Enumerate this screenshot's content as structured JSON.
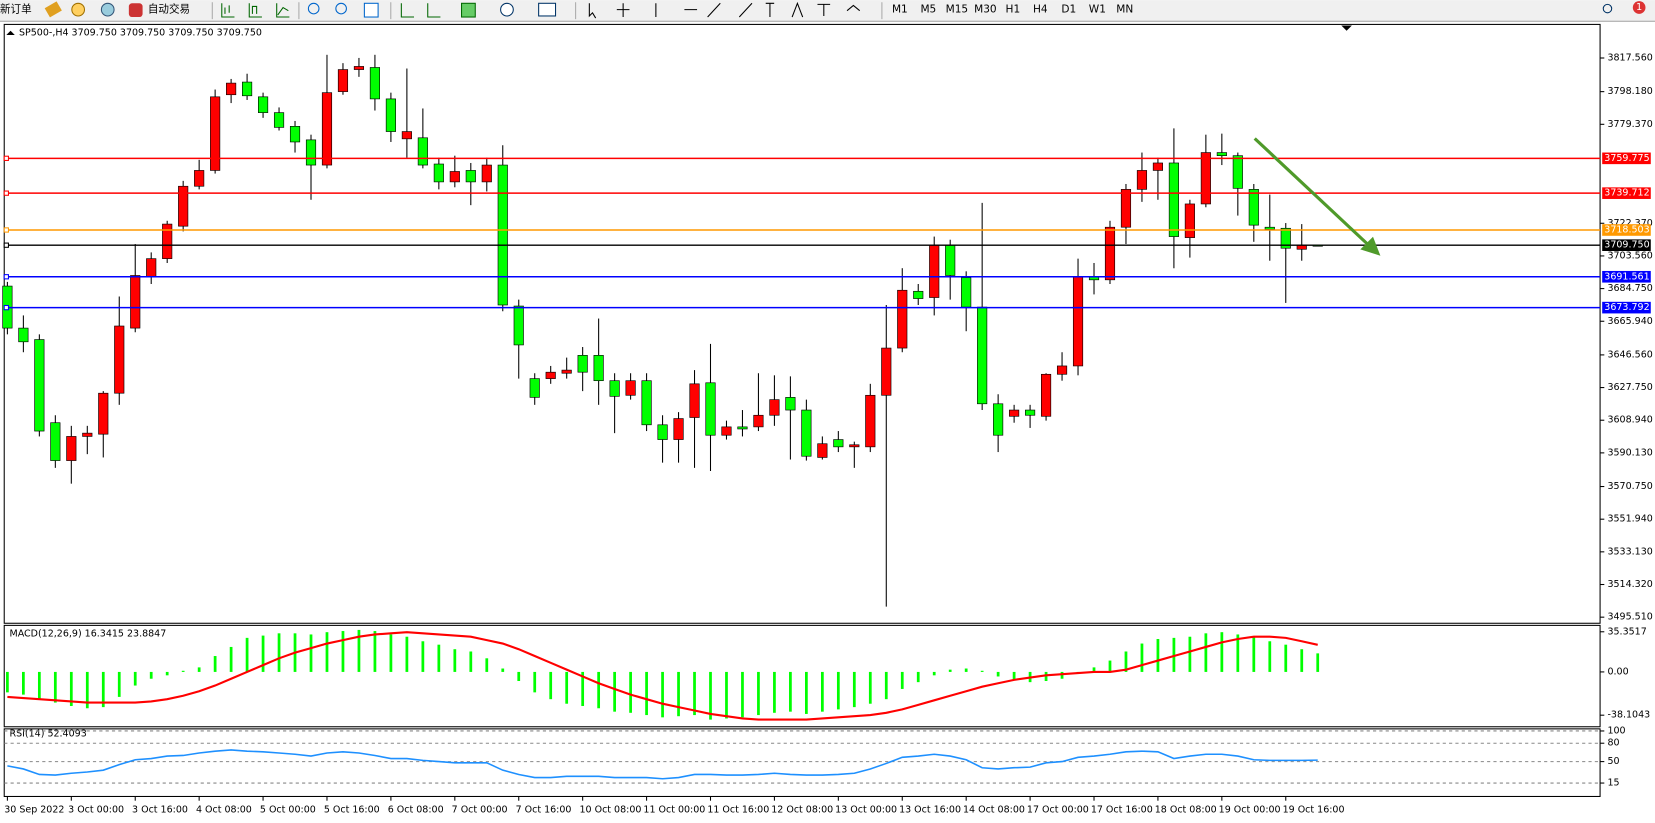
{
  "toolbar": {
    "new_order": "新订单",
    "auto_trading": "自动交易",
    "timeframes": [
      "M1",
      "M5",
      "M15",
      "M30",
      "H1",
      "H4",
      "D1",
      "W1",
      "MN"
    ],
    "notifications": 1
  },
  "chart_data": [
    {
      "type": "candlestick",
      "title": "SP500-,H4 3709.750 3709.750 3709.750 3709.750",
      "categories": [
        "30 Sep 2022",
        null,
        null,
        null,
        "3 Oct 00:00",
        null,
        null,
        null,
        "3 Oct 16:00",
        null,
        null,
        null,
        "4 Oct 08:00",
        null,
        null,
        null,
        "5 Oct 00:00",
        null,
        null,
        null,
        "5 Oct 16:00",
        null,
        null,
        null,
        "6 Oct 08:00",
        null,
        null,
        null,
        "7 Oct 00:00",
        null,
        null,
        null,
        "7 Oct 16:00",
        null,
        null,
        null,
        "10 Oct 08:00",
        null,
        null,
        null,
        "11 Oct 00:00",
        null,
        null,
        null,
        "11 Oct 16:00",
        null,
        null,
        null,
        "12 Oct 08:00",
        null,
        null,
        null,
        "13 Oct 00:00",
        null,
        null,
        null,
        "13 Oct 16:00",
        null,
        null,
        null,
        "14 Oct 08:00",
        null,
        null,
        null,
        "17 Oct 00:00",
        null,
        null,
        null,
        "17 Oct 16:00",
        null,
        null,
        null,
        "18 Oct 08:00",
        null,
        null,
        null,
        "19 Oct 00:00",
        null,
        null,
        null,
        "19 Oct 16:00",
        null,
        null
      ],
      "open": [
        3686.2,
        3662.0,
        3655.4,
        3607.5,
        3585.7,
        3599.6,
        3600.9,
        3624.5,
        3662.0,
        3691.7,
        3702.0,
        3720.7,
        3743.7,
        3752.8,
        3796.4,
        3803.7,
        3795.2,
        3786.1,
        3778.2,
        3770.4,
        3755.9,
        3798.2,
        3810.9,
        3812.1,
        3794.0,
        3771.0,
        3771.6,
        3756.5,
        3746.2,
        3752.8,
        3746.2,
        3755.9,
        3674.7,
        3632.9,
        3632.9,
        3636.0,
        3646.3,
        3646.3,
        3631.7,
        3623.3,
        3631.7,
        3606.3,
        3597.8,
        3610.5,
        3630.5,
        3600.3,
        3605.1,
        3605.1,
        3611.8,
        3622.1,
        3614.8,
        3587.5,
        3597.8,
        3593.6,
        3593.6,
        3623.3,
        3650.5,
        3683.2,
        3679.6,
        3709.8,
        3691.1,
        3674.1,
        3618.4,
        3611.2,
        3614.8,
        3611.2,
        3635.4,
        3640.2,
        3691.7,
        3689.8,
        3720.1,
        3741.9,
        3752.8,
        3757.1,
        3714.1,
        3733.5,
        3763.1,
        3761.3,
        3741.9,
        3720.1,
        3719.5,
        3707.4,
        3709.75
      ],
      "high": [
        3688.6,
        3669.3,
        3658.4,
        3611.8,
        3605.7,
        3605.7,
        3625.7,
        3680.2,
        3710.4,
        3705.6,
        3723.8,
        3746.8,
        3758.9,
        3799.4,
        3805.5,
        3808.5,
        3797.6,
        3789.1,
        3781.3,
        3773.4,
        3819.4,
        3814.6,
        3817.6,
        3819.4,
        3797.6,
        3811.5,
        3788.5,
        3760.1,
        3761.3,
        3757.1,
        3760.1,
        3767.3,
        3678.4,
        3636.0,
        3640.2,
        3645.0,
        3651.1,
        3667.5,
        3636.0,
        3636.0,
        3636.0,
        3611.8,
        3613.6,
        3637.8,
        3652.9,
        3608.7,
        3614.8,
        3636.0,
        3634.8,
        3634.2,
        3620.8,
        3599.6,
        3602.7,
        3596.6,
        3629.9,
        3675.3,
        3696.5,
        3687.4,
        3714.7,
        3712.9,
        3694.7,
        3734.1,
        3623.9,
        3617.8,
        3617.8,
        3636.0,
        3648.1,
        3702.0,
        3699.5,
        3723.8,
        3745.0,
        3763.1,
        3760.1,
        3777.0,
        3735.9,
        3773.4,
        3774.0,
        3763.1,
        3745.0,
        3738.9,
        3722.5,
        3721.9,
        3709.75
      ],
      "low": [
        3658.4,
        3648.1,
        3599.6,
        3581.5,
        3572.4,
        3589.4,
        3587.5,
        3617.8,
        3659.6,
        3687.4,
        3699.5,
        3717.7,
        3741.9,
        3751.0,
        3791.6,
        3793.4,
        3783.1,
        3775.8,
        3763.1,
        3735.9,
        3754.0,
        3796.4,
        3806.7,
        3787.3,
        3769.2,
        3760.1,
        3754.0,
        3741.9,
        3743.1,
        3732.8,
        3740.7,
        3671.7,
        3632.9,
        3617.8,
        3629.9,
        3632.9,
        3625.7,
        3617.8,
        3601.5,
        3620.8,
        3602.7,
        3584.5,
        3584.5,
        3581.5,
        3579.7,
        3597.8,
        3599.6,
        3602.7,
        3605.7,
        3586.3,
        3585.7,
        3586.3,
        3590.6,
        3581.5,
        3590.6,
        3501.6,
        3648.1,
        3675.3,
        3669.3,
        3678.4,
        3660.2,
        3614.8,
        3590.6,
        3607.5,
        3604.5,
        3608.7,
        3631.7,
        3634.8,
        3681.4,
        3687.4,
        3710.4,
        3734.7,
        3735.9,
        3696.5,
        3702.6,
        3731.6,
        3755.9,
        3726.8,
        3711.7,
        3700.8,
        3676.5,
        3700.8,
        3709.75
      ],
      "close": [
        3662.0,
        3654.1,
        3602.7,
        3585.7,
        3599.6,
        3601.5,
        3624.5,
        3663.2,
        3692.3,
        3702.0,
        3721.9,
        3743.7,
        3752.8,
        3795.2,
        3803.1,
        3795.8,
        3786.1,
        3777.6,
        3769.2,
        3755.9,
        3797.6,
        3810.9,
        3812.7,
        3794.0,
        3775.2,
        3775.2,
        3755.9,
        3746.2,
        3752.2,
        3746.2,
        3755.9,
        3675.3,
        3652.3,
        3622.1,
        3636.6,
        3637.8,
        3636.6,
        3631.7,
        3622.7,
        3631.7,
        3606.3,
        3597.8,
        3609.9,
        3629.9,
        3600.3,
        3605.1,
        3603.9,
        3611.8,
        3620.8,
        3614.8,
        3588.2,
        3595.4,
        3593.6,
        3594.8,
        3623.3,
        3650.5,
        3683.8,
        3679.0,
        3709.8,
        3692.3,
        3674.1,
        3618.4,
        3600.3,
        3614.8,
        3611.8,
        3635.4,
        3640.2,
        3691.7,
        3689.8,
        3720.1,
        3741.9,
        3752.8,
        3757.1,
        3714.7,
        3733.5,
        3763.1,
        3761.3,
        3742.5,
        3721.3,
        3718.9,
        3708.0,
        3709.8,
        3709.75
      ],
      "up_color": "#ff0000",
      "down_color": "#00ff00",
      "ylim": [
        3492.0,
        3836.9
      ],
      "yticks": [
        {
          "value": 3817.56,
          "label": "3817.560"
        },
        {
          "value": 3798.18,
          "label": "3798.180"
        },
        {
          "value": 3779.37,
          "label": "3779.370"
        },
        {
          "value": 3722.37,
          "label": "3722.370"
        },
        {
          "value": 3703.56,
          "label": "3703.560"
        },
        {
          "value": 3684.75,
          "label": "3684.750"
        },
        {
          "value": 3665.94,
          "label": "3665.940"
        },
        {
          "value": 3646.56,
          "label": "3646.560"
        },
        {
          "value": 3627.75,
          "label": "3627.750"
        },
        {
          "value": 3608.94,
          "label": "3608.940"
        },
        {
          "value": 3590.13,
          "label": "3590.130"
        },
        {
          "value": 3570.75,
          "label": "3570.750"
        },
        {
          "value": 3551.94,
          "label": "3551.940"
        },
        {
          "value": 3533.13,
          "label": "3533.130"
        },
        {
          "value": 3514.32,
          "label": "3514.320"
        },
        {
          "value": 3495.51,
          "label": "3495.510"
        }
      ],
      "levels": [
        {
          "value": 3759.775,
          "label": "3759.775",
          "color": "#ff0000"
        },
        {
          "value": 3739.712,
          "label": "3739.712",
          "color": "#ff0000"
        },
        {
          "value": 3718.503,
          "label": "3718.503",
          "color": "#ff9900"
        },
        {
          "value": 3709.75,
          "label": "3709.750",
          "color": "#000000"
        },
        {
          "value": 3691.561,
          "label": "3691.561",
          "color": "#0000ff"
        },
        {
          "value": 3673.792,
          "label": "3673.792",
          "color": "#0000ff"
        }
      ]
    },
    {
      "type": "bar",
      "title": "MACD(12,26,9) 16.3415 23.8847",
      "values": [
        -18,
        -20,
        -24,
        -27,
        -30,
        -32,
        -31,
        -22,
        -12,
        -6,
        -3,
        1,
        4,
        14,
        22,
        30,
        32,
        34,
        34,
        33,
        35,
        36,
        37,
        36,
        33,
        31,
        27,
        24,
        20,
        18,
        12,
        3,
        -8,
        -18,
        -24,
        -28,
        -30,
        -32,
        -35,
        -36,
        -38,
        -40,
        -39,
        -38,
        -42,
        -41,
        -40,
        -38,
        -36,
        -35,
        -37,
        -35,
        -33,
        -31,
        -28,
        -24,
        -15,
        -9,
        -3,
        2,
        3,
        1,
        -4,
        -7,
        -9,
        -8,
        -6,
        -1,
        4,
        10,
        18,
        25,
        29,
        30,
        31,
        34,
        35,
        33,
        31,
        27,
        24,
        20,
        16.3415
      ],
      "color": "#00ff00",
      "line_values": [
        -22,
        -23,
        -24,
        -25,
        -26,
        -27,
        -27,
        -27,
        -27,
        -26,
        -24,
        -21,
        -17,
        -12,
        -6,
        0,
        6,
        12,
        17,
        21,
        25,
        28,
        31,
        33,
        34,
        35,
        34,
        33,
        32,
        31,
        28,
        25,
        20,
        14,
        8,
        2,
        -4,
        -10,
        -15,
        -20,
        -24,
        -28,
        -31,
        -34,
        -37,
        -39,
        -41,
        -42,
        -42,
        -42,
        -42,
        -41,
        -40,
        -39,
        -38,
        -36,
        -33,
        -29,
        -25,
        -21,
        -17,
        -13,
        -10,
        -7,
        -5,
        -3,
        -2,
        -1,
        0,
        0,
        2,
        6,
        10,
        14,
        18,
        22,
        26,
        29,
        31,
        31,
        30,
        27,
        23.8847
      ],
      "line_color": "#ff0000",
      "ylim": [
        -48.3,
        41.0
      ],
      "yticks": [
        35.3517,
        {
          "value": 0,
          "label": "0.00"
        },
        -38.1043
      ]
    },
    {
      "type": "line",
      "title": "RSI(14) 52.4093",
      "values": [
        43,
        38,
        29,
        28,
        31,
        33,
        36,
        45,
        53,
        55,
        59,
        60,
        64,
        67,
        69,
        67,
        66,
        64,
        62,
        59,
        64,
        66,
        64,
        60,
        55,
        55,
        52,
        50,
        48,
        48,
        48,
        36,
        29,
        24,
        24,
        26,
        26,
        26,
        24,
        24,
        24,
        22,
        24,
        29,
        29,
        28,
        28,
        29,
        31,
        29,
        28,
        28,
        29,
        31,
        38,
        47,
        57,
        59,
        62,
        59,
        53,
        40,
        38,
        40,
        41,
        48,
        50,
        57,
        59,
        62,
        66,
        67,
        66,
        55,
        59,
        62,
        62,
        59,
        53,
        52,
        52,
        52,
        52.4093
      ],
      "color": "#1e90ff",
      "ylim": [
        -6.9,
        103.4
      ],
      "yticks": [
        100,
        80,
        50,
        15
      ],
      "grid": true
    }
  ]
}
